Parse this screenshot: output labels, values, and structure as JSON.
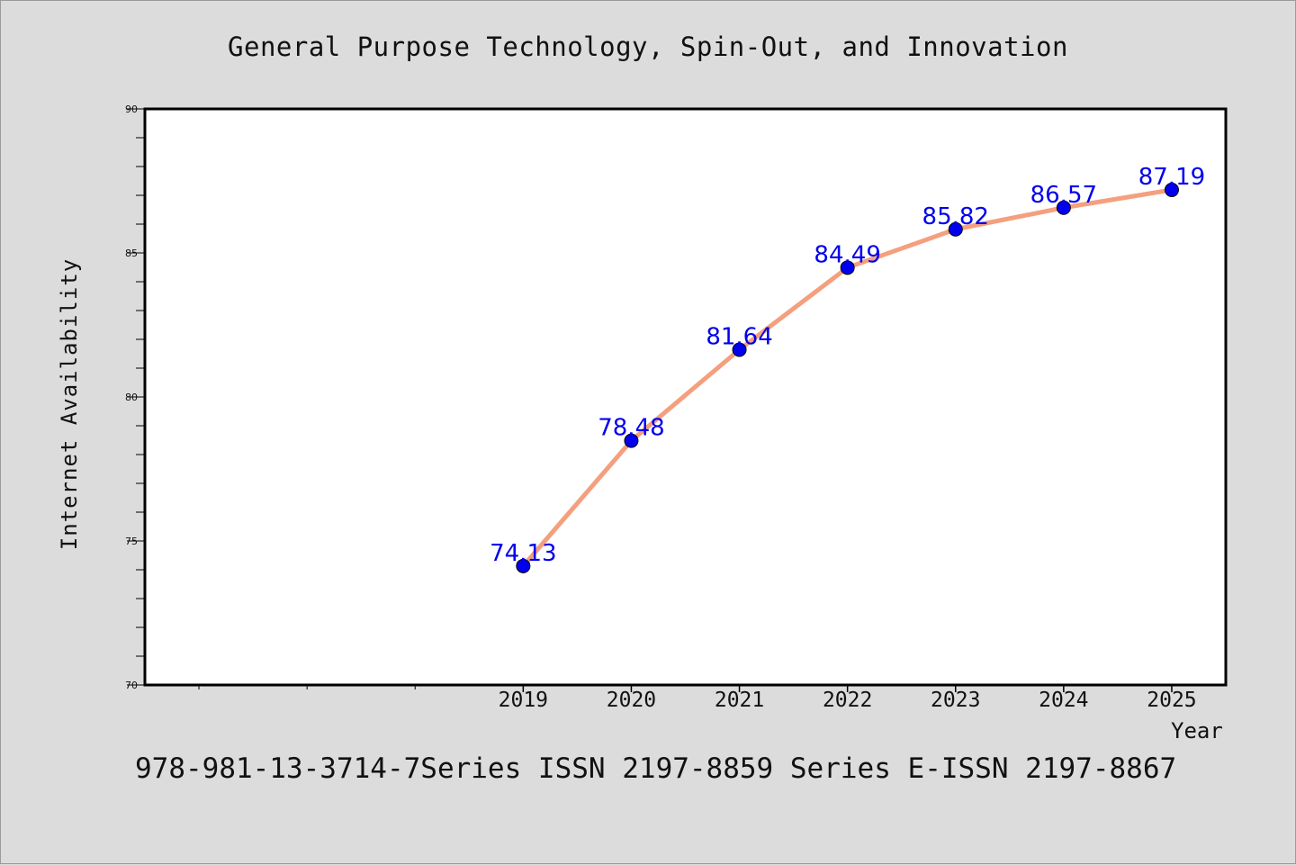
{
  "chart_data": {
    "type": "line",
    "title": "General Purpose Technology, Spin-Out, and Innovation",
    "xlabel": "Year",
    "ylabel": "Internet Availability",
    "x": [
      2019,
      2020,
      2021,
      2022,
      2023,
      2024,
      2025
    ],
    "series": [
      {
        "values": [
          74.13,
          78.48,
          81.64,
          84.49,
          85.82,
          86.57,
          87.19
        ]
      }
    ],
    "data_labels": [
      "74.13",
      "78.48",
      "81.64",
      "84.49",
      "85.82",
      "86.57",
      "87.19"
    ],
    "x_ticks": [
      "2019",
      "2020",
      "2021",
      "2022",
      "2023",
      "2024",
      "2025"
    ],
    "y_ticks": [
      "70",
      "75",
      "80",
      "85",
      "90"
    ],
    "xlim": [
      2015.5,
      2025.5
    ],
    "ylim": [
      70,
      90
    ],
    "grid": false,
    "colors": {
      "line": "#f4a07e",
      "marker": "#0000ee",
      "data_label": "#0000ee",
      "plot_background": "#ffffff",
      "figure_background": "#dcdcdc"
    }
  },
  "footer_text": "978-981-13-3714-7Series ISSN 2197-8859 Series E-ISSN 2197-8867"
}
